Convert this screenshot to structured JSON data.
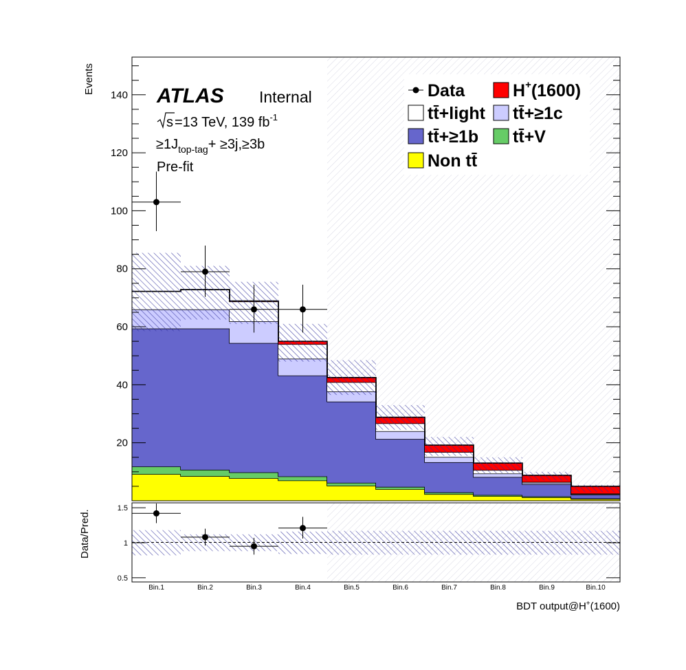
{
  "chart_data": {
    "type": "bar",
    "stacked": true,
    "categories": [
      "Bin.1",
      "Bin.2",
      "Bin.3",
      "Bin.4",
      "Bin.5",
      "Bin.6",
      "Bin.7",
      "Bin.8",
      "Bin.9",
      "Bin.10"
    ],
    "xlabel": "BDT output@H",
    "xlabel_sup": "+",
    "xlabel_tail": "(1600)",
    "ylabel": "Events",
    "ylim": [
      0,
      153
    ],
    "yticks": [
      "20",
      "40",
      "60",
      "80",
      "100",
      "120",
      "140"
    ],
    "ratio_ylabel": "Data/Pred.",
    "ratio_ylim": [
      0.44,
      1.57
    ],
    "ratio_yticks": [
      "0.5",
      "1",
      "1.5"
    ],
    "blinded_from_bin": 5,
    "series": [
      {
        "name": "Non tt̄",
        "color": "#ffff00",
        "values": [
          9.2,
          8.5,
          7.8,
          7.0,
          5.2,
          4.0,
          2.3,
          1.6,
          1.2,
          0.6
        ]
      },
      {
        "name": "tt̄+V",
        "color": "#66cc66",
        "values": [
          2.6,
          2.2,
          2.0,
          1.4,
          1.0,
          0.8,
          0.6,
          0.4,
          0.3,
          0.2
        ]
      },
      {
        "name": "tt̄+≥1b",
        "color": "#6666cc",
        "values": [
          47.6,
          48.7,
          44.6,
          34.8,
          28.0,
          16.5,
          10.4,
          6.2,
          4.2,
          1.3
        ]
      },
      {
        "name": "tt̄+≥1c",
        "color": "#ccccff",
        "values": [
          6.6,
          6.6,
          7.5,
          5.8,
          3.5,
          2.7,
          1.8,
          1.2,
          0.5,
          0.2
        ]
      },
      {
        "name": "tt̄+light",
        "color": "#ffffff",
        "values": [
          6.2,
          6.8,
          6.8,
          5.0,
          3.2,
          2.7,
          1.7,
          1.2,
          0.3,
          0.2
        ]
      },
      {
        "name": "H(1600)",
        "color": "#ff0000",
        "values": [
          0.0,
          0.0,
          0.2,
          1.0,
          1.6,
          2.1,
          2.4,
          2.4,
          2.3,
          2.5
        ]
      }
    ],
    "signal_label_main": "H",
    "signal_label_sup": "+",
    "signal_label_tail": "(1600)",
    "uncertainty_band": {
      "up": [
        85.5,
        81.0,
        75.5,
        61.0,
        48.5,
        33.0,
        22.0,
        15.0,
        10.0,
        5.5
      ],
      "down": [
        58.5,
        62.5,
        61.0,
        48.0,
        36.5,
        24.5,
        15.5,
        9.5,
        7.0,
        3.0
      ]
    },
    "data": {
      "name": "Data",
      "bins": [
        1,
        2,
        3,
        4
      ],
      "values": [
        103,
        79,
        66,
        66
      ],
      "err_up": [
        10.5,
        9.0,
        8.5,
        8.5
      ],
      "err_down": [
        10.0,
        8.7,
        8.0,
        8.0
      ]
    },
    "ratio": {
      "values": [
        1.42,
        1.08,
        0.95,
        1.21
      ],
      "err_up": [
        0.14,
        0.12,
        0.12,
        0.16
      ],
      "err_down": [
        0.14,
        0.12,
        0.12,
        0.15
      ],
      "band_up": [
        1.18,
        1.12,
        1.12,
        1.16,
        1.17,
        1.17,
        1.17,
        1.17,
        1.17,
        1.17
      ],
      "band_down": [
        0.82,
        0.88,
        0.88,
        0.84,
        0.83,
        0.83,
        0.83,
        0.83,
        0.83,
        0.83
      ]
    },
    "annotations": {
      "atlas": "ATLAS",
      "internal": "Internal",
      "sqrt_s": "s",
      "energy_lumi": " =13 TeV, 139 fb",
      "lumi_sup": "-1",
      "selection_main": "≥1J",
      "selection_sub": "top-tag",
      "selection_tail": "+ ≥3j,≥3b",
      "fit_state": "Pre-fit"
    },
    "legend_position": "top-right"
  }
}
